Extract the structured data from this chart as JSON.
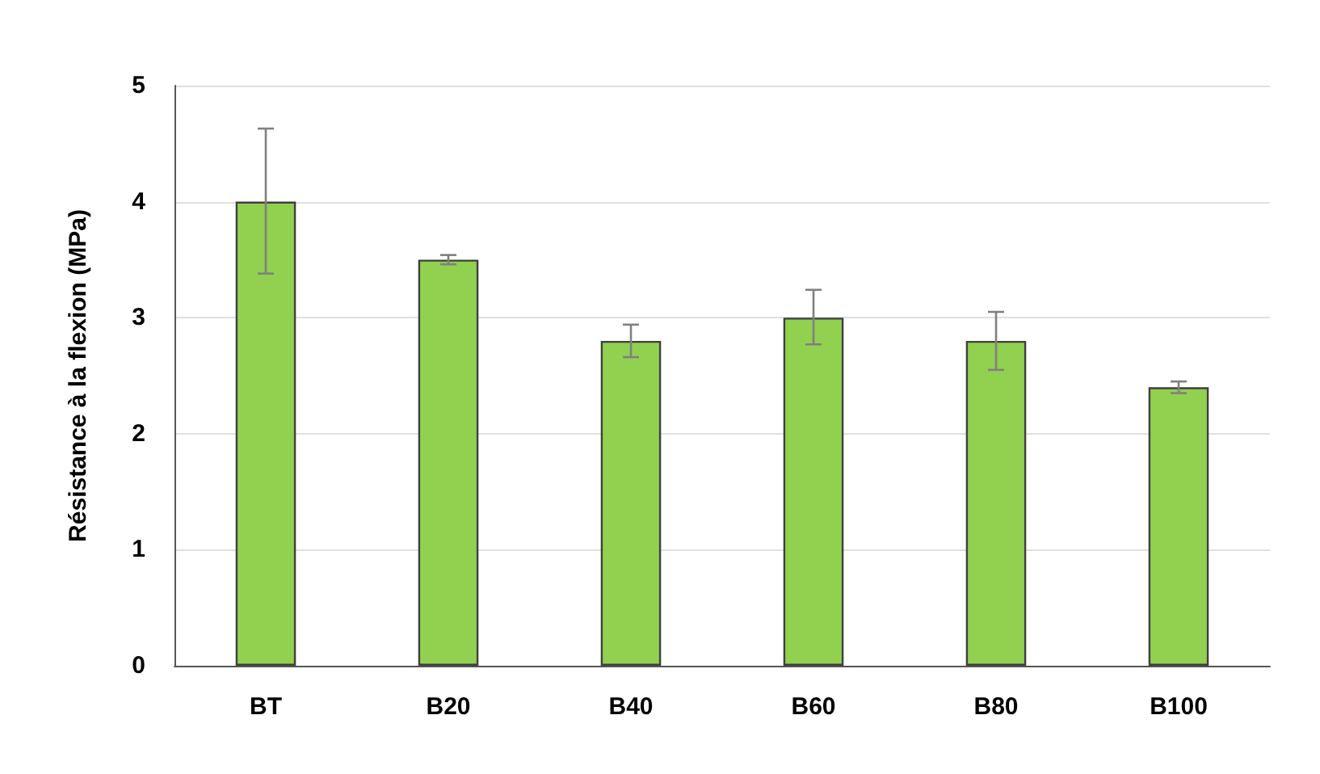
{
  "chart_data": {
    "type": "bar",
    "ylabel": "Résistance à la flexion (MPa)",
    "categories": [
      "BT",
      "B20",
      "B40",
      "B60",
      "B80",
      "B100"
    ],
    "values": [
      4.0,
      3.5,
      2.8,
      3.0,
      2.8,
      2.4
    ],
    "errors": [
      [
        3.38,
        4.63
      ],
      0.04,
      0.14,
      [
        2.77,
        3.24
      ],
      0.25,
      0.05
    ],
    "color": "#92d050",
    "ylim": [
      0,
      5
    ],
    "yticks": [
      0,
      1,
      2,
      3,
      4,
      5
    ],
    "grid": "y"
  }
}
